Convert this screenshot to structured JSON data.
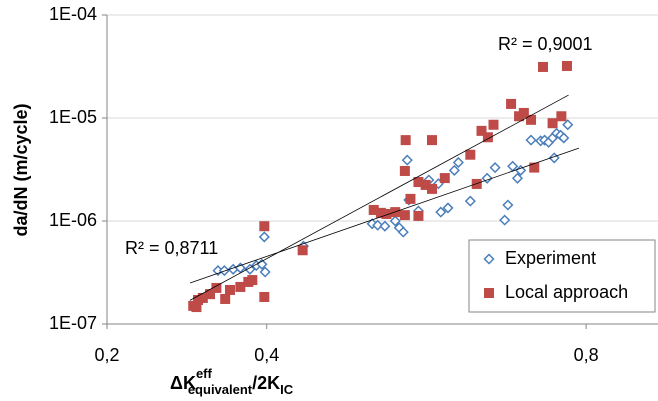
{
  "chart_data": {
    "type": "scatter",
    "y_label": "da/dN (m/cycle)",
    "x_label": {
      "base": "ΔK",
      "sup": "eff",
      "sub": "equivalent",
      "base2": "/2K",
      "sub2": "IC"
    },
    "xlim": [
      0.2,
      0.89
    ],
    "xticks": [
      {
        "value": 0.2,
        "label": "0,2"
      },
      {
        "value": 0.4,
        "label": "0,4"
      },
      {
        "value": 0.8,
        "label": "0,8"
      }
    ],
    "ylim": [
      1e-07,
      0.0001
    ],
    "yticks": [
      {
        "value": 1e-07,
        "label": "1E-07"
      },
      {
        "value": 1e-06,
        "label": "1E-06"
      },
      {
        "value": 1e-05,
        "label": "1E-05"
      },
      {
        "value": 0.0001,
        "label": "1E-04"
      }
    ],
    "log_y": true,
    "grid": true,
    "legend": "lower right",
    "annotations": [
      "R² = 0,9001",
      "R² = 0,8711"
    ],
    "series": [
      {
        "name": "Experiment",
        "color": "#4a7ebb",
        "marker": "diamond",
        "x": [
          0.339,
          0.347,
          0.358,
          0.367,
          0.379,
          0.387,
          0.394,
          0.398,
          0.397,
          0.446,
          0.532,
          0.539,
          0.548,
          0.561,
          0.566,
          0.571,
          0.578,
          0.59,
          0.576,
          0.603,
          0.615,
          0.618,
          0.627,
          0.635,
          0.64,
          0.655,
          0.676,
          0.686,
          0.698,
          0.702,
          0.708,
          0.714,
          0.718,
          0.731,
          0.743,
          0.748,
          0.753,
          0.758,
          0.763,
          0.768,
          0.772,
          0.777,
          0.76
        ],
        "values": [
          3.3e-07,
          3.3e-07,
          3.4e-07,
          3.5e-07,
          3.4e-07,
          3.7e-07,
          3.8e-07,
          3.2e-07,
          7e-07,
          5.7e-07,
          9.4e-07,
          9.1e-07,
          8.9e-07,
          1e-06,
          8.6e-07,
          7.8e-07,
          1.6e-06,
          1.25e-06,
          3.9e-06,
          2.5e-06,
          2.3e-06,
          1.22e-06,
          1.34e-06,
          3.1e-06,
          3.7e-06,
          1.56e-06,
          2.6e-06,
          3.3e-06,
          1.02e-06,
          1.43e-06,
          3.4e-06,
          2.6e-06,
          3.1e-06,
          6.1e-06,
          6e-06,
          6.1e-06,
          5.8e-06,
          6.4e-06,
          7.1e-06,
          6.8e-06,
          6.4e-06,
          8.6e-06,
          4.1e-06
        ]
      },
      {
        "name": "Local approach",
        "color": "#be4b48",
        "marker": "square",
        "x": [
          0.308,
          0.312,
          0.314,
          0.32,
          0.329,
          0.337,
          0.348,
          0.354,
          0.367,
          0.377,
          0.382,
          0.397,
          0.397,
          0.445,
          0.534,
          0.543,
          0.55,
          0.561,
          0.573,
          0.58,
          0.59,
          0.573,
          0.574,
          0.59,
          0.599,
          0.607,
          0.607,
          0.623,
          0.655,
          0.663,
          0.669,
          0.677,
          0.684,
          0.706,
          0.716,
          0.722,
          0.731,
          0.735,
          0.746,
          0.758,
          0.769,
          0.776
        ],
        "values": [
          1.5e-07,
          1.46e-07,
          1.71e-07,
          1.79e-07,
          1.95e-07,
          2.24e-07,
          1.75e-07,
          2.14e-07,
          2.29e-07,
          2.56e-07,
          2.67e-07,
          1.83e-07,
          8.9e-07,
          5.2e-07,
          1.28e-06,
          1.2e-06,
          1.17e-06,
          1.22e-06,
          1.14e-06,
          1.64e-06,
          1.12e-06,
          3.06e-06,
          6.1e-06,
          2.39e-06,
          2.24e-06,
          2.05e-06,
          6.1e-06,
          2.61e-06,
          4.4e-06,
          2.29e-06,
          7.5e-06,
          6.5e-06,
          8.6e-06,
          1.37e-05,
          1.04e-05,
          1.12e-05,
          9.6e-06,
          3.3e-06,
          3.13e-05,
          8.9e-06,
          1.04e-05,
          3.2e-05
        ]
      }
    ],
    "trendlines": [
      {
        "color": "#000000",
        "x": [
          0.304,
          0.778
        ],
        "y": [
          1.7e-07,
          1.67e-05
        ]
      },
      {
        "color": "#000000",
        "x": [
          0.304,
          0.791
        ],
        "y": [
          2.5e-07,
          5.1e-06
        ]
      }
    ]
  }
}
